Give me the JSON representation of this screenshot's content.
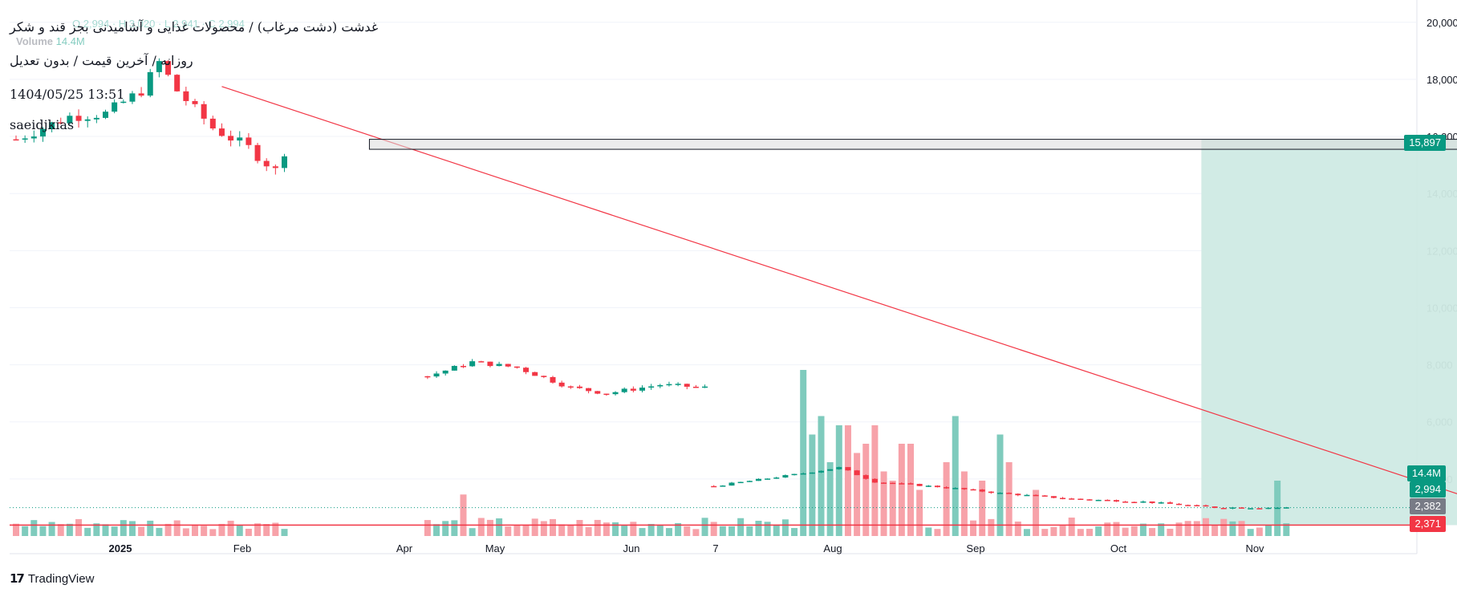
{
  "legend": {
    "symbol_title": "غدشت (دشت مرغاب) / محصولات غذایی و آشامیدنی بجز قند و شکر",
    "interval_line": "روزانه / آخرین قیمت / بدون تعدیل",
    "timestamp": "1404/05/25 13:51",
    "author": "saeidjkias",
    "volume_label": "Volume",
    "volume_value": "14.4M"
  },
  "price_tags": {
    "box_price": "15,897",
    "volume": "14.4M",
    "last_price": "2,994",
    "line_price_a": "2,382",
    "line_price_b": "2,371"
  },
  "brand": {
    "name": "TradingView"
  },
  "colors": {
    "up": "#089981",
    "down": "#f23645",
    "vol_up": "#7fcbbd",
    "vol_down": "#f7a2a9",
    "trendline": "#f23645",
    "zone": "#cfeae4",
    "box": "#dcdcdc",
    "axis_text": "#131722",
    "grid": "#f0f3fa"
  },
  "chart_data": {
    "type": "candlestick",
    "y_axis": {
      "ticks": [
        20000,
        18000,
        16000,
        14000,
        12000,
        10000,
        8000,
        6000,
        4000
      ],
      "range": [
        2000,
        20500
      ],
      "position": "right"
    },
    "x_axis": {
      "labels": [
        "2025",
        "Feb",
        "Apr",
        "May",
        "Jun",
        "7",
        "Aug",
        "Sep",
        "Oct",
        "Nov"
      ]
    },
    "segments": [
      {
        "from": 0,
        "to": 30,
        "start": 15900,
        "noise": 400,
        "path": [
          [
            0,
            15900
          ],
          [
            6,
            16700
          ],
          [
            10,
            16800
          ],
          [
            14,
            17600
          ],
          [
            16,
            18600
          ],
          [
            18,
            17600
          ],
          [
            22,
            16300
          ],
          [
            26,
            15600
          ],
          [
            29,
            14800
          ],
          [
            30,
            15500
          ]
        ]
      },
      {
        "from": 46,
        "to": 77,
        "start": 7600,
        "noise": 150,
        "path": [
          [
            46,
            7600
          ],
          [
            48,
            7800
          ],
          [
            51,
            8100
          ],
          [
            56,
            7900
          ],
          [
            62,
            7200
          ],
          [
            66,
            7000
          ],
          [
            72,
            7300
          ],
          [
            77,
            7200
          ]
        ]
      },
      {
        "from": 78,
        "to": 142,
        "start": 3750,
        "noise": 60,
        "path": [
          [
            78,
            3750
          ],
          [
            88,
            4200
          ],
          [
            92,
            4400
          ],
          [
            96,
            3900
          ],
          [
            104,
            3700
          ],
          [
            110,
            3500
          ],
          [
            118,
            3300
          ],
          [
            126,
            3200
          ],
          [
            134,
            3000
          ],
          [
            142,
            2994
          ]
        ]
      }
    ],
    "volume_spikes": [
      [
        50,
        0.9
      ],
      [
        88,
        3.6
      ],
      [
        89,
        2.2
      ],
      [
        90,
        2.6
      ],
      [
        91,
        1.6
      ],
      [
        92,
        2.4
      ],
      [
        93,
        2.4
      ],
      [
        94,
        1.8
      ],
      [
        95,
        2.0
      ],
      [
        96,
        2.4
      ],
      [
        97,
        1.4
      ],
      [
        98,
        1.2
      ],
      [
        99,
        2.0
      ],
      [
        100,
        2.0
      ],
      [
        101,
        1.0
      ],
      [
        104,
        1.6
      ],
      [
        105,
        2.6
      ],
      [
        106,
        1.4
      ],
      [
        108,
        1.2
      ],
      [
        110,
        2.2
      ],
      [
        111,
        1.6
      ],
      [
        114,
        1.0
      ],
      [
        141,
        1.2
      ]
    ],
    "trendline": {
      "from": [
        23,
        17750
      ],
      "to": [
        173,
        2250
      ]
    },
    "box": {
      "from_index": 39.5,
      "to_index": 180,
      "top": 15900,
      "bottom": 15550
    },
    "zone": {
      "from_index": 132.5,
      "to_index": 168,
      "top": 15900,
      "bottom": 2382
    },
    "horizontal_lines": [
      {
        "price": 2382,
        "style": "solid"
      },
      {
        "price": 2994,
        "style": "dotted"
      }
    ],
    "last_index": 142
  }
}
